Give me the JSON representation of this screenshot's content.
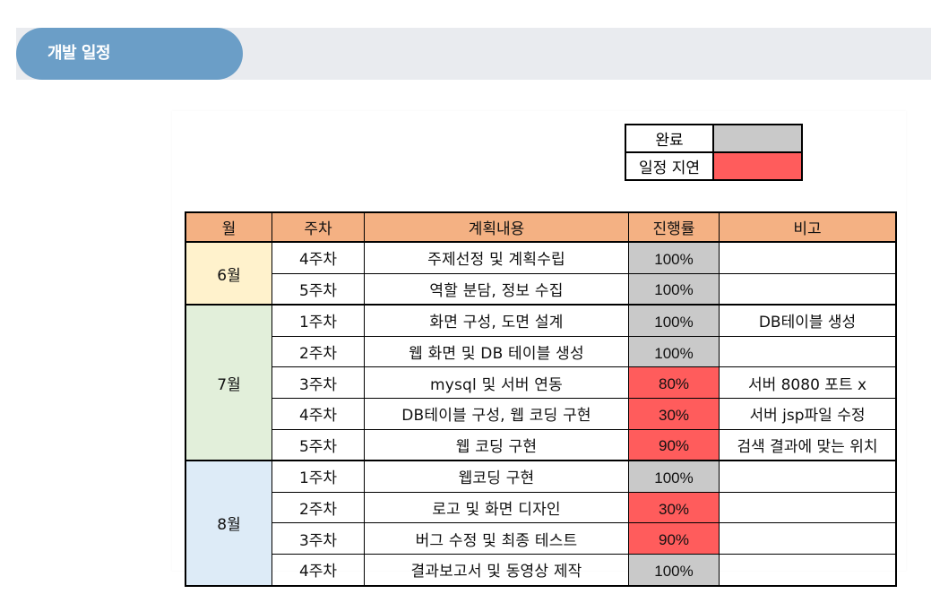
{
  "header": {
    "title": "개발 일정"
  },
  "colors": {
    "header_pill": "#6b9ec7",
    "header_band": "#e9ebef",
    "complete": "#c9c9c9",
    "delayed": "#ff5c5c",
    "table_header": "#f4b183",
    "month_6": "#fff2cc",
    "month_7": "#e2efda",
    "month_8": "#ddebf7"
  },
  "legend": [
    {
      "label": "완료",
      "status": "complete"
    },
    {
      "label": "일정 지연",
      "status": "delayed"
    }
  ],
  "table": {
    "headers": [
      "월",
      "주차",
      "계획내용",
      "진행률",
      "비고"
    ],
    "months": [
      {
        "label": "6월",
        "color_key": "month_6",
        "rows": [
          {
            "week": "4주차",
            "plan": "주제선정 및 계획수립",
            "progress": "100%",
            "status": "complete",
            "note": ""
          },
          {
            "week": "5주차",
            "plan": "역할 분담, 정보 수집",
            "progress": "100%",
            "status": "complete",
            "note": ""
          }
        ]
      },
      {
        "label": "7월",
        "color_key": "month_7",
        "rows": [
          {
            "week": "1주차",
            "plan": "화면 구성, 도면 설계",
            "progress": "100%",
            "status": "complete",
            "note": "DB테이블 생성"
          },
          {
            "week": "2주차",
            "plan": "웹 화면 및 DB 테이블 생성",
            "progress": "100%",
            "status": "complete",
            "note": ""
          },
          {
            "week": "3주차",
            "plan": "mysql 및 서버 연동",
            "progress": "80%",
            "status": "delayed",
            "note": "서버 8080 포트 x"
          },
          {
            "week": "4주차",
            "plan": "DB테이블 구성, 웹 코딩 구현",
            "progress": "30%",
            "status": "delayed",
            "note": "서버 jsp파일 수정"
          },
          {
            "week": "5주차",
            "plan": "웹 코딩 구현",
            "progress": "90%",
            "status": "delayed",
            "note": "검색 결과에 맞는 위치"
          }
        ]
      },
      {
        "label": "8월",
        "color_key": "month_8",
        "rows": [
          {
            "week": "1주차",
            "plan": "웹코딩 구현",
            "progress": "100%",
            "status": "complete",
            "note": ""
          },
          {
            "week": "2주차",
            "plan": "로고 및 화면 디자인",
            "progress": "30%",
            "status": "delayed",
            "note": ""
          },
          {
            "week": "3주차",
            "plan": "버그 수정 및 최종 테스트",
            "progress": "90%",
            "status": "delayed",
            "note": ""
          },
          {
            "week": "4주차",
            "plan": "결과보고서 및 동영상 제작",
            "progress": "100%",
            "status": "complete",
            "note": ""
          }
        ]
      }
    ]
  }
}
